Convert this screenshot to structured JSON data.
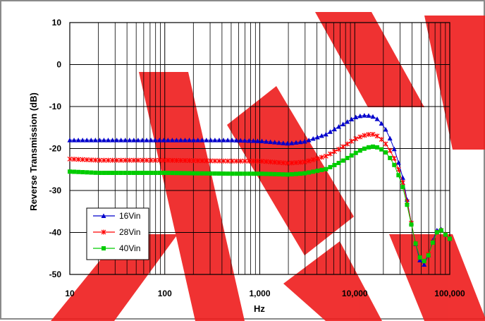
{
  "chart_data": {
    "type": "line",
    "title": "",
    "xlabel": "Hz",
    "ylabel": "Reverse Transmission (dB)",
    "x_scale": "log",
    "xlim": [
      10,
      100000
    ],
    "ylim": [
      -50,
      10
    ],
    "grid": true,
    "legend_position": "bottom-left",
    "x_ticks": [
      "10",
      "100",
      "1,000",
      "10,000",
      "100,000"
    ],
    "y_ticks": [
      "10",
      "0",
      "-10",
      "-20",
      "-30",
      "-40",
      "-50"
    ],
    "x": [
      10,
      20,
      50,
      100,
      200,
      500,
      1000,
      2000,
      3000,
      5000,
      7000,
      10000,
      12000,
      15000,
      18000,
      22000,
      27000,
      33000,
      38000,
      43000,
      47000,
      52000,
      57000,
      62000,
      68000,
      75000,
      82000,
      90000,
      100000
    ],
    "series": [
      {
        "name": "16Vin",
        "color": "#0000cc",
        "marker": "triangle",
        "values": [
          -18,
          -18,
          -18,
          -18,
          -18,
          -18,
          -18.2,
          -18.8,
          -18.3,
          -16.6,
          -14.6,
          -12.6,
          -12.1,
          -12.2,
          -13.2,
          -16,
          -21,
          -28,
          -36,
          -42,
          -46,
          -48,
          -47,
          -44,
          -41,
          -39,
          -39.3,
          -40.5,
          -41.5
        ]
      },
      {
        "name": "28Vin",
        "color": "#ff0000",
        "marker": "x",
        "values": [
          -22.5,
          -22.8,
          -22.8,
          -22.8,
          -22.9,
          -23,
          -23,
          -23.5,
          -23.2,
          -21.8,
          -20,
          -17.8,
          -17,
          -16.5,
          -17.2,
          -19.3,
          -23,
          -29,
          -36,
          -42,
          -45.5,
          -47,
          -46.5,
          -44,
          -41.5,
          -39.5,
          -39.5,
          -40.5,
          -41.5
        ]
      },
      {
        "name": "40Vin",
        "color": "#00cc00",
        "marker": "square",
        "values": [
          -25.5,
          -25.8,
          -25.8,
          -25.8,
          -25.9,
          -26,
          -26,
          -26.2,
          -25.9,
          -24.9,
          -23.3,
          -21.2,
          -20.2,
          -19.5,
          -19.8,
          -21.2,
          -24.5,
          -30,
          -36.5,
          -42,
          -45.5,
          -47,
          -46.5,
          -44.5,
          -41.5,
          -39.5,
          -39.5,
          -40.5,
          -41.5
        ]
      }
    ]
  }
}
